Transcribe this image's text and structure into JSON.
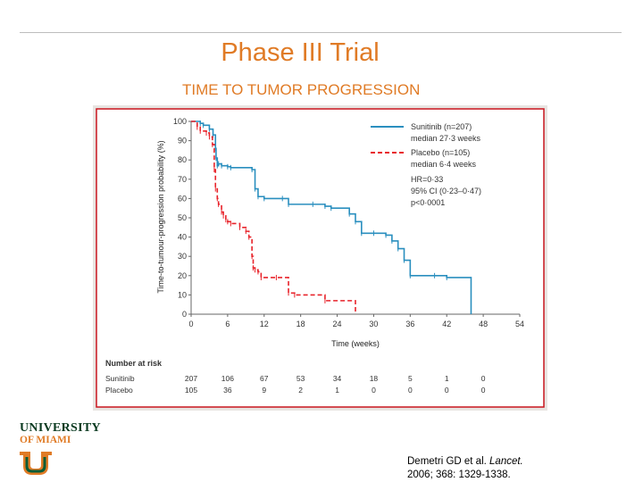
{
  "slide": {
    "title": "Phase III Trial",
    "subtitle": "TIME TO TUMOR PROGRESSION"
  },
  "citation": {
    "authors": "Demetri GD et al. ",
    "journal": "Lancet.",
    "details": "2006; 368: 1329-1338."
  },
  "logo": {
    "line1": "UNIVERSITY",
    "line2": "OF MIAMI"
  },
  "colors": {
    "accent": "#e07b26",
    "sunitinib": "#2a8fbf",
    "placebo": "#e8232a",
    "frame": "#c9151e",
    "logo_green": "#0a5c36"
  },
  "chart_data": {
    "type": "line",
    "xlabel": "Time (weeks)",
    "ylabel": "Time-to-tumour-progression probability (%)",
    "xlim": [
      0,
      54
    ],
    "ylim": [
      0,
      100
    ],
    "xticks": [
      0,
      6,
      12,
      18,
      24,
      30,
      36,
      42,
      48,
      54
    ],
    "yticks": [
      0,
      10,
      20,
      30,
      40,
      50,
      60,
      70,
      80,
      90,
      100
    ],
    "legend": {
      "sunitinib": "Sunitinib (n=207)",
      "sunitinib_median": "median 27·3 weeks",
      "placebo": "Placebo (n=105)",
      "placebo_median": "median 6·4 weeks",
      "hr": "HR=0·33",
      "ci": "95% CI (0·23–0·47)",
      "p": "p<0·0001"
    },
    "series": [
      {
        "name": "Sunitinib (n=207)",
        "style": "solid",
        "x": [
          0,
          1.5,
          2,
          3,
          3.6,
          4,
          4.1,
          4.3,
          4.5,
          5,
          6,
          6.5,
          10,
          10.5,
          11,
          12,
          15,
          16,
          20,
          22,
          23,
          26,
          27,
          28,
          30,
          32,
          33,
          34,
          35,
          36,
          40,
          42,
          46
        ],
        "y": [
          100,
          99,
          98,
          96,
          93,
          86,
          81,
          77,
          78,
          77,
          76.5,
          76,
          75,
          65,
          61,
          60,
          60,
          57,
          57,
          56,
          55,
          52,
          48,
          42,
          42,
          41,
          38,
          34,
          28,
          20,
          20,
          19,
          0
        ]
      },
      {
        "name": "Placebo (n=105)",
        "style": "dashed",
        "x": [
          0,
          1,
          1.5,
          2.5,
          3,
          3.5,
          3.8,
          4,
          4.3,
          4.5,
          5,
          5.3,
          5.7,
          6,
          6.5,
          8,
          9,
          9.5,
          10,
          10.2,
          10.5,
          11,
          11.5,
          14,
          16,
          17,
          22,
          27
        ],
        "y": [
          100,
          97,
          95,
          94,
          92,
          88,
          75,
          65,
          60,
          57,
          53,
          51,
          49,
          48,
          47,
          45,
          43,
          40,
          30,
          24,
          23,
          22,
          19,
          19,
          11,
          10,
          7,
          0
        ]
      }
    ],
    "risk_table": {
      "title": "Number at risk",
      "times": [
        0,
        6,
        12,
        18,
        24,
        30,
        36,
        42,
        48
      ],
      "rows": [
        {
          "label": "Sunitinib",
          "values": [
            "207",
            "106",
            "67",
            "53",
            "34",
            "18",
            "5",
            "1",
            "0"
          ]
        },
        {
          "label": "Placebo",
          "values": [
            "105",
            "36",
            "9",
            "2",
            "1",
            "0",
            "0",
            "0",
            "0"
          ]
        }
      ]
    }
  }
}
